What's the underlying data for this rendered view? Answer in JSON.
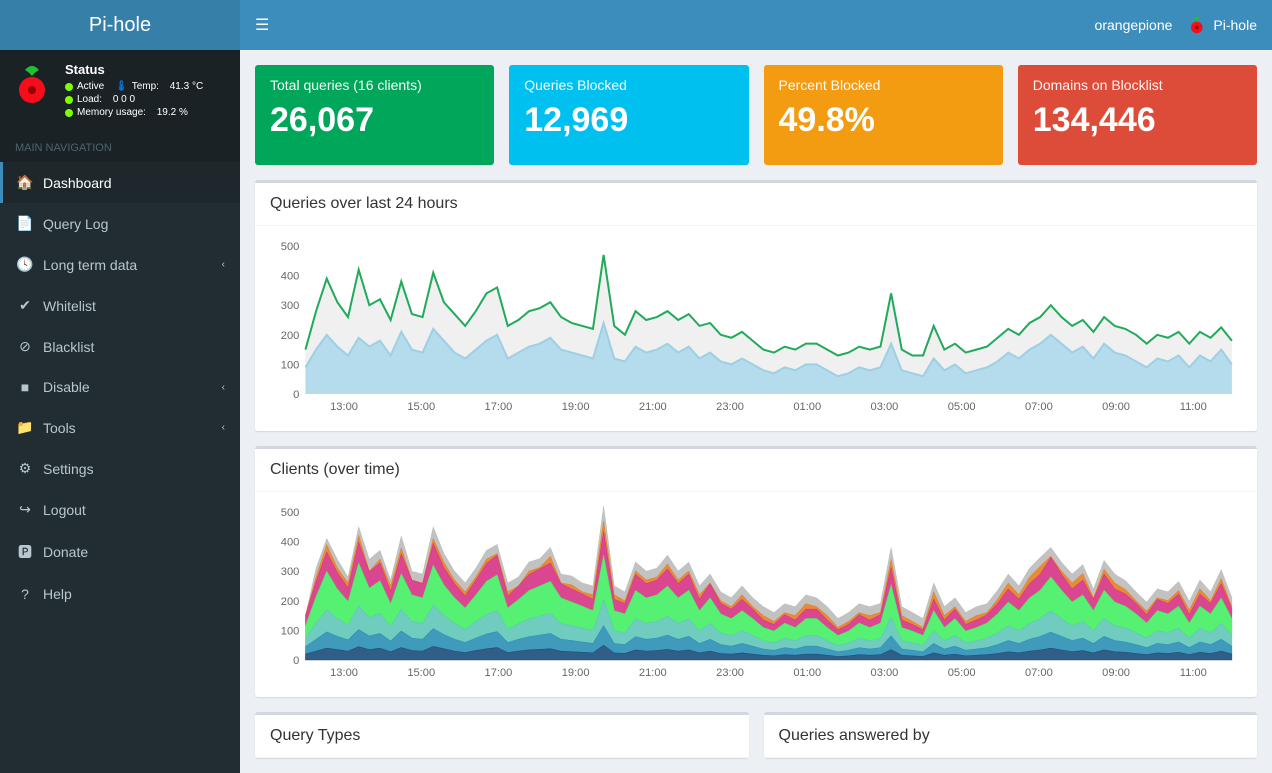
{
  "app_name": "Pi-hole",
  "hostname": "orangepione",
  "topbar_brand": "Pi-hole",
  "status": {
    "title": "Status",
    "active_label": "Active",
    "temp_label": "Temp:",
    "temp_value": "41.3 °C",
    "load_label": "Load:",
    "load_value": "0  0  0",
    "mem_label": "Memory usage:",
    "mem_value": "19.2 %"
  },
  "nav_header": "MAIN NAVIGATION",
  "nav": [
    {
      "icon": "home",
      "label": "Dashboard",
      "active": true
    },
    {
      "icon": "file",
      "label": "Query Log"
    },
    {
      "icon": "clock",
      "label": "Long term data",
      "chev": true
    },
    {
      "icon": "check",
      "label": "Whitelist"
    },
    {
      "icon": "ban",
      "label": "Blacklist"
    },
    {
      "icon": "stop",
      "label": "Disable",
      "chev": true
    },
    {
      "icon": "folder",
      "label": "Tools",
      "chev": true
    },
    {
      "icon": "cogs",
      "label": "Settings"
    },
    {
      "icon": "logout",
      "label": "Logout"
    },
    {
      "icon": "paypal",
      "label": "Donate"
    },
    {
      "icon": "help",
      "label": "Help"
    }
  ],
  "stats": [
    {
      "label": "Total queries (16 clients)",
      "value": "26,067",
      "bg": "#00a65a",
      "icon": "globe"
    },
    {
      "label": "Queries Blocked",
      "value": "12,969",
      "bg": "#00c0ef",
      "icon": "hand"
    },
    {
      "label": "Percent Blocked",
      "value": "49.8%",
      "bg": "#f39c12",
      "icon": "pie"
    },
    {
      "label": "Domains on Blocklist",
      "value": "134,446",
      "bg": "#dd4b39",
      "icon": "list"
    }
  ],
  "charts": {
    "queries": {
      "title": "Queries over last 24 hours",
      "ylim": [
        0,
        500
      ],
      "ytick_step": 100,
      "xlabels": [
        "13:00",
        "15:00",
        "17:00",
        "19:00",
        "21:00",
        "23:00",
        "01:00",
        "03:00",
        "05:00",
        "07:00",
        "09:00",
        "11:00"
      ],
      "colors": {
        "permitted": "#22aa5b",
        "blocked": "#9ecfe3",
        "blocked_fill": "#b4dced",
        "bg": "#ffffff",
        "grid": "#eeeeee",
        "axis": "#666666"
      },
      "permitted": [
        150,
        280,
        390,
        310,
        260,
        420,
        300,
        320,
        250,
        380,
        270,
        260,
        410,
        310,
        270,
        230,
        280,
        340,
        360,
        230,
        250,
        280,
        290,
        310,
        260,
        240,
        230,
        220,
        470,
        230,
        200,
        280,
        250,
        260,
        280,
        250,
        270,
        230,
        240,
        200,
        190,
        210,
        180,
        150,
        140,
        160,
        150,
        170,
        170,
        150,
        130,
        140,
        160,
        150,
        160,
        340,
        150,
        130,
        130,
        230,
        150,
        170,
        140,
        150,
        160,
        190,
        220,
        200,
        240,
        260,
        300,
        260,
        230,
        250,
        210,
        260,
        230,
        220,
        200,
        170,
        200,
        190,
        210,
        170,
        210,
        190,
        225,
        180
      ],
      "blocked": [
        90,
        150,
        200,
        160,
        130,
        190,
        160,
        180,
        130,
        210,
        150,
        140,
        220,
        180,
        140,
        120,
        150,
        180,
        200,
        120,
        140,
        160,
        170,
        190,
        150,
        140,
        130,
        120,
        240,
        120,
        110,
        160,
        140,
        150,
        170,
        140,
        160,
        120,
        140,
        110,
        100,
        120,
        100,
        80,
        70,
        90,
        80,
        100,
        100,
        80,
        60,
        70,
        90,
        80,
        90,
        170,
        80,
        70,
        60,
        120,
        80,
        100,
        70,
        80,
        90,
        110,
        140,
        120,
        150,
        170,
        200,
        170,
        140,
        160,
        120,
        170,
        140,
        130,
        110,
        90,
        120,
        110,
        130,
        90,
        130,
        110,
        150,
        100
      ]
    },
    "clients": {
      "title": "Clients (over time)",
      "ylim": [
        0,
        500
      ],
      "ytick_step": 100,
      "xlabels": [
        "13:00",
        "15:00",
        "17:00",
        "19:00",
        "21:00",
        "23:00",
        "01:00",
        "03:00",
        "05:00",
        "07:00",
        "09:00",
        "11:00"
      ],
      "series_colors": [
        "#1a4d7a",
        "#2a8fb5",
        "#5fc6b8",
        "#44ee63",
        "#d63384",
        "#e67e22",
        "#bbbbbb"
      ],
      "stacks": [
        [
          20,
          30,
          40,
          35,
          30,
          45,
          35,
          40,
          28,
          42,
          32,
          30,
          46,
          38,
          30,
          25,
          32,
          38,
          42,
          25,
          30,
          34,
          36,
          38,
          30,
          28,
          26,
          24,
          50,
          24,
          22,
          34,
          30,
          32,
          36,
          30,
          34,
          24,
          30,
          22,
          20,
          24,
          20,
          16,
          14,
          18,
          16,
          20,
          20,
          16,
          12,
          14,
          18,
          16,
          18,
          35,
          16,
          14,
          12,
          24,
          16,
          20,
          14,
          16,
          18,
          22,
          28,
          24,
          30,
          34,
          40,
          34,
          28,
          32,
          24,
          34,
          28,
          26,
          22,
          18,
          24,
          22,
          26,
          18,
          26,
          22,
          30,
          20
        ],
        [
          25,
          40,
          55,
          45,
          38,
          58,
          46,
          50,
          36,
          56,
          42,
          40,
          60,
          48,
          40,
          34,
          42,
          50,
          54,
          34,
          40,
          45,
          48,
          52,
          40,
          38,
          35,
          32,
          66,
          32,
          30,
          45,
          40,
          42,
          48,
          40,
          46,
          32,
          40,
          30,
          27,
          32,
          27,
          21,
          19,
          24,
          21,
          27,
          27,
          21,
          16,
          19,
          24,
          21,
          24,
          47,
          21,
          19,
          16,
          32,
          21,
          27,
          19,
          21,
          24,
          30,
          38,
          32,
          40,
          46,
          54,
          46,
          38,
          42,
          32,
          46,
          38,
          35,
          30,
          24,
          32,
          30,
          35,
          24,
          35,
          30,
          40,
          27
        ],
        [
          30,
          55,
          75,
          60,
          50,
          80,
          62,
          68,
          48,
          74,
          56,
          54,
          80,
          64,
          54,
          45,
          56,
          66,
          72,
          45,
          52,
          60,
          64,
          68,
          54,
          50,
          47,
          43,
          88,
          43,
          40,
          60,
          54,
          56,
          64,
          54,
          60,
          43,
          54,
          40,
          36,
          43,
          36,
          28,
          25,
          32,
          28,
          36,
          36,
          28,
          21,
          25,
          32,
          28,
          32,
          63,
          28,
          25,
          21,
          43,
          28,
          36,
          25,
          28,
          32,
          40,
          50,
          43,
          54,
          60,
          72,
          60,
          50,
          56,
          43,
          60,
          50,
          47,
          40,
          32,
          43,
          40,
          47,
          32,
          47,
          40,
          54,
          36
        ],
        [
          40,
          90,
          130,
          100,
          80,
          145,
          100,
          110,
          78,
          120,
          90,
          86,
          135,
          104,
          86,
          72,
          90,
          112,
          120,
          72,
          82,
          96,
          102,
          108,
          86,
          80,
          74,
          68,
          150,
          68,
          64,
          96,
          86,
          90,
          102,
          86,
          96,
          68,
          86,
          64,
          57,
          68,
          57,
          45,
          40,
          51,
          45,
          57,
          57,
          45,
          34,
          40,
          51,
          45,
          51,
          110,
          45,
          40,
          34,
          68,
          45,
          57,
          40,
          45,
          51,
          64,
          80,
          68,
          86,
          96,
          115,
          96,
          80,
          90,
          68,
          96,
          80,
          74,
          64,
          51,
          68,
          64,
          74,
          51,
          74,
          64,
          86,
          57
        ],
        [
          35,
          50,
          65,
          55,
          45,
          70,
          55,
          60,
          42,
          66,
          50,
          48,
          72,
          58,
          48,
          40,
          50,
          60,
          66,
          40,
          46,
          54,
          58,
          62,
          48,
          44,
          41,
          38,
          80,
          38,
          35,
          54,
          48,
          50,
          58,
          48,
          54,
          38,
          48,
          35,
          32,
          38,
          32,
          25,
          22,
          28,
          25,
          32,
          32,
          25,
          19,
          22,
          28,
          25,
          28,
          58,
          25,
          22,
          19,
          38,
          25,
          32,
          22,
          25,
          28,
          35,
          44,
          38,
          48,
          54,
          66,
          54,
          44,
          50,
          38,
          54,
          44,
          41,
          35,
          28,
          38,
          35,
          41,
          28,
          41,
          35,
          48,
          32
        ],
        [
          0,
          15,
          25,
          15,
          17,
          22,
          2,
          12,
          18,
          20,
          0,
          2,
          17,
          18,
          12,
          14,
          10,
          14,
          6,
          14,
          0,
          12,
          4,
          22,
          2,
          14,
          7,
          15,
          36,
          15,
          9,
          12,
          12,
          10,
          16,
          12,
          10,
          15,
          2,
          9,
          8,
          15,
          8,
          15,
          10,
          7,
          15,
          18,
          8,
          15,
          8,
          10,
          7,
          15,
          8,
          27,
          15,
          10,
          8,
          25,
          15,
          8,
          10,
          15,
          7,
          14,
          20,
          15,
          22,
          26,
          3,
          10,
          20,
          22,
          4,
          16,
          20,
          15,
          9,
          12,
          5,
          9,
          12,
          15,
          17,
          9,
          17,
          8
        ],
        [
          0,
          30,
          20,
          30,
          20,
          30,
          40,
          30,
          20,
          40,
          30,
          30,
          40,
          30,
          30,
          30,
          30,
          30,
          30,
          30,
          30,
          30,
          30,
          30,
          30,
          30,
          30,
          30,
          50,
          30,
          30,
          30,
          30,
          30,
          30,
          30,
          30,
          30,
          30,
          30,
          30,
          30,
          30,
          30,
          30,
          30,
          30,
          30,
          30,
          30,
          30,
          30,
          30,
          30,
          30,
          40,
          30,
          30,
          30,
          30,
          30,
          30,
          30,
          30,
          30,
          30,
          30,
          30,
          30,
          30,
          30,
          30,
          30,
          30,
          30,
          30,
          30,
          30,
          30,
          30,
          30,
          30,
          30,
          30,
          30,
          30,
          30,
          30
        ]
      ]
    },
    "panel3_title": "Query Types",
    "panel4_title": "Queries answered by"
  }
}
